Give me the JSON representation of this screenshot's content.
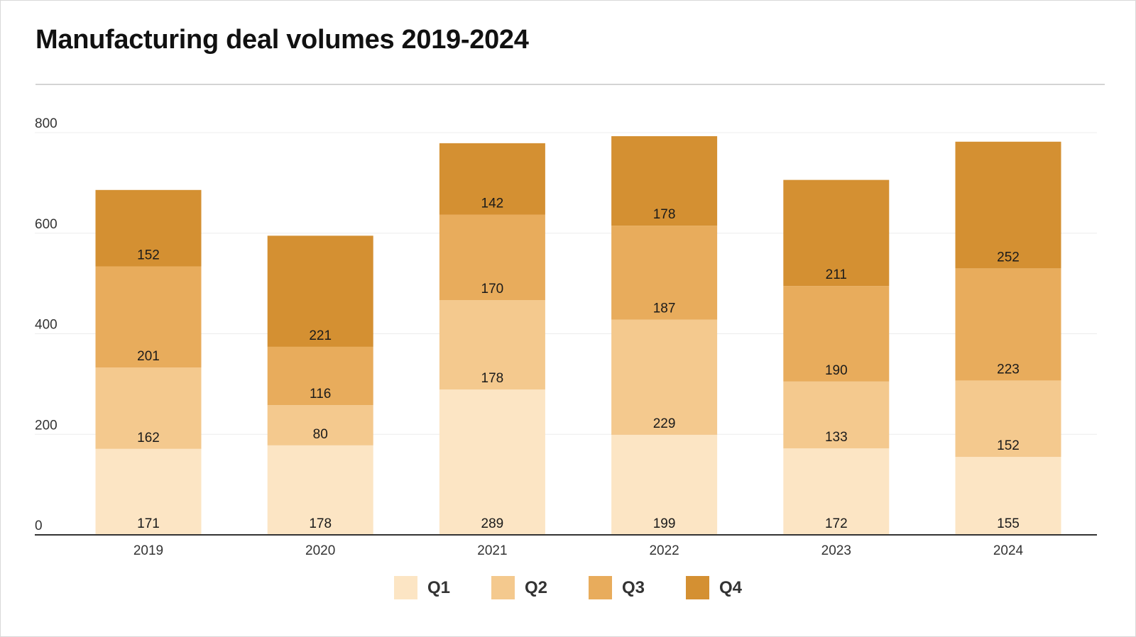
{
  "chart_data": {
    "type": "bar",
    "stacked": true,
    "title": "Manufacturing deal volumes 2019-2024",
    "xlabel": "",
    "ylabel": "",
    "ylim": [
      0,
      800
    ],
    "yticks": [
      0,
      200,
      400,
      600,
      800
    ],
    "grid": true,
    "legend_position": "bottom",
    "categories": [
      "2019",
      "2020",
      "2021",
      "2022",
      "2023",
      "2024"
    ],
    "series": [
      {
        "name": "Q1",
        "color": "#fce5c4",
        "values": [
          171,
          178,
          289,
          199,
          172,
          155
        ]
      },
      {
        "name": "Q2",
        "color": "#f4c98e",
        "values": [
          162,
          80,
          178,
          229,
          133,
          152
        ]
      },
      {
        "name": "Q3",
        "color": "#e8ac5c",
        "values": [
          201,
          116,
          170,
          187,
          190,
          223
        ]
      },
      {
        "name": "Q4",
        "color": "#d49032",
        "values": [
          152,
          221,
          142,
          178,
          211,
          252
        ]
      }
    ]
  }
}
